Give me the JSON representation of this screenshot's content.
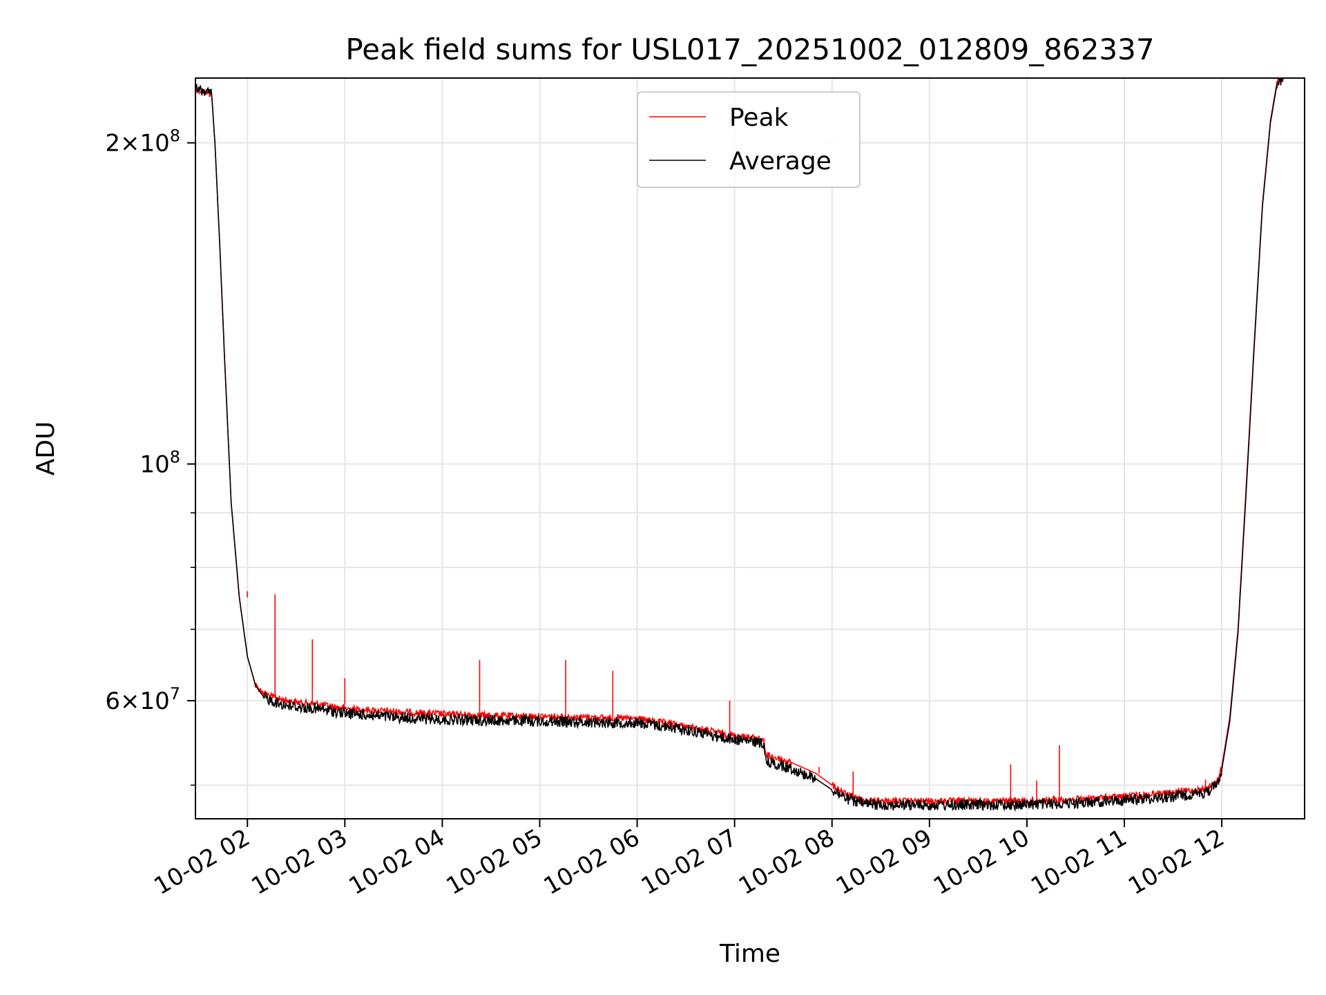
{
  "chart_data": {
    "type": "line",
    "title": "Peak field sums for USL017_20251002_012809_862337",
    "xlabel": "Time",
    "ylabel": "ADU",
    "y_scale": "log",
    "ylim": [
      46500000,
      230000000
    ],
    "xlim": [
      "10-02 01:28",
      "10-02 12:51"
    ],
    "x_ticks": [
      {
        "t": "10-02 02:00",
        "label": "10-02 02"
      },
      {
        "t": "10-02 03:00",
        "label": "10-02 03"
      },
      {
        "t": "10-02 04:00",
        "label": "10-02 04"
      },
      {
        "t": "10-02 05:00",
        "label": "10-02 05"
      },
      {
        "t": "10-02 06:00",
        "label": "10-02 06"
      },
      {
        "t": "10-02 07:00",
        "label": "10-02 07"
      },
      {
        "t": "10-02 08:00",
        "label": "10-02 08"
      },
      {
        "t": "10-02 09:00",
        "label": "10-02 09"
      },
      {
        "t": "10-02 10:00",
        "label": "10-02 10"
      },
      {
        "t": "10-02 11:00",
        "label": "10-02 11"
      },
      {
        "t": "10-02 12:00",
        "label": "10-02 12"
      }
    ],
    "y_major_ticks": [
      {
        "value": 200000000,
        "base": "2×10",
        "exp": "8"
      },
      {
        "value": 100000000,
        "base": "10",
        "exp": "8"
      },
      {
        "value": 60000000,
        "base": "6×10",
        "exp": "7"
      }
    ],
    "y_minor_ticks": [
      50000000,
      70000000,
      80000000,
      90000000
    ],
    "grid": true,
    "legend": {
      "position": "upper center"
    },
    "series": [
      {
        "name": "Peak",
        "color": "#ff0000",
        "x": [
          "10-02 01:28",
          "10-02 01:30",
          "10-02 01:35",
          "10-02 01:38",
          "10-02 01:40",
          "10-02 01:43",
          "10-02 01:46",
          "10-02 01:50",
          "10-02 01:55",
          "10-02 02:00",
          "10-02 02:05",
          "10-02 02:10",
          "10-02 02:15",
          "10-02 02:20",
          "10-02 02:30",
          "10-02 02:45",
          "10-02 03:00",
          "10-02 03:30",
          "10-02 04:00",
          "10-02 04:30",
          "10-02 05:00",
          "10-02 05:30",
          "10-02 06:00",
          "10-02 06:20",
          "10-02 06:40",
          "10-02 06:55",
          "10-02 07:18",
          "10-02 07:19",
          "10-02 07:35",
          "10-02 07:50",
          "10-02 08:00",
          "10-02 08:10",
          "10-02 08:20",
          "10-02 08:40",
          "10-02 09:00",
          "10-02 09:30",
          "10-02 10:00",
          "10-02 10:30",
          "10-02 11:00",
          "10-02 11:30",
          "10-02 11:50",
          "10-02 11:57",
          "10-02 12:00",
          "10-02 12:05",
          "10-02 12:10",
          "10-02 12:15",
          "10-02 12:20",
          "10-02 12:25",
          "10-02 12:30",
          "10-02 12:34",
          "10-02 12:38"
        ],
        "y": [
          225000000,
          224000000,
          223000000,
          222000000,
          200000000,
          160000000,
          125000000,
          92000000,
          75000000,
          66000000,
          62000000,
          61000000,
          60500000,
          60200000,
          59800000,
          59500000,
          59000000,
          58600000,
          58300000,
          58100000,
          58000000,
          57900000,
          57700000,
          57100000,
          56400000,
          55800000,
          55200000,
          53400000,
          52500000,
          51300000,
          50000000,
          48900000,
          48400000,
          48300000,
          48300000,
          48300000,
          48350000,
          48500000,
          48800000,
          49200000,
          49600000,
          50300000,
          52000000,
          58000000,
          70000000,
          95000000,
          130000000,
          175000000,
          210000000,
          228000000,
          230000000
        ],
        "spikes": [
          {
            "x": "10-02 02:00",
            "y": 76000000
          },
          {
            "x": "10-02 02:17",
            "y": 75500000
          },
          {
            "x": "10-02 02:40",
            "y": 68500000
          },
          {
            "x": "10-02 03:00",
            "y": 63000000
          },
          {
            "x": "10-02 04:23",
            "y": 65500000
          },
          {
            "x": "10-02 05:16",
            "y": 65500000
          },
          {
            "x": "10-02 05:45",
            "y": 64000000
          },
          {
            "x": "10-02 06:57",
            "y": 60000000
          },
          {
            "x": "10-02 07:52",
            "y": 52000000
          },
          {
            "x": "10-02 08:13",
            "y": 51500000
          },
          {
            "x": "10-02 09:50",
            "y": 52300000
          },
          {
            "x": "10-02 10:06",
            "y": 50500000
          },
          {
            "x": "10-02 10:20",
            "y": 54500000
          },
          {
            "x": "10-02 11:50",
            "y": 50600000
          }
        ]
      },
      {
        "name": "Average",
        "color": "#000000",
        "x": [
          "10-02 01:28",
          "10-02 01:30",
          "10-02 01:35",
          "10-02 01:38",
          "10-02 01:40",
          "10-02 01:43",
          "10-02 01:46",
          "10-02 01:50",
          "10-02 01:55",
          "10-02 02:00",
          "10-02 02:05",
          "10-02 02:10",
          "10-02 02:15",
          "10-02 02:20",
          "10-02 02:30",
          "10-02 02:45",
          "10-02 03:00",
          "10-02 03:30",
          "10-02 04:00",
          "10-02 04:30",
          "10-02 05:00",
          "10-02 05:30",
          "10-02 06:00",
          "10-02 06:20",
          "10-02 06:40",
          "10-02 06:55",
          "10-02 07:18",
          "10-02 07:19",
          "10-02 07:35",
          "10-02 07:50",
          "10-02 08:00",
          "10-02 08:10",
          "10-02 08:20",
          "10-02 08:40",
          "10-02 09:00",
          "10-02 09:30",
          "10-02 10:00",
          "10-02 10:30",
          "10-02 11:00",
          "10-02 11:30",
          "10-02 11:50",
          "10-02 11:57",
          "10-02 12:00",
          "10-02 12:05",
          "10-02 12:10",
          "10-02 12:15",
          "10-02 12:20",
          "10-02 12:25",
          "10-02 12:30",
          "10-02 12:34",
          "10-02 12:38"
        ],
        "y": [
          225000000,
          224000000,
          223000000,
          222000000,
          200000000,
          160000000,
          125000000,
          92000000,
          75000000,
          66000000,
          62000000,
          60500000,
          60000000,
          59600000,
          59200000,
          58900000,
          58400000,
          57900000,
          57600000,
          57500000,
          57400000,
          57300000,
          57200000,
          56700000,
          56000000,
          55300000,
          54800000,
          52700000,
          51800000,
          50700000,
          49500000,
          48500000,
          48000000,
          47900000,
          47900000,
          47900000,
          47950000,
          48100000,
          48400000,
          48800000,
          49200000,
          50000000,
          51700000,
          57500000,
          69500000,
          94000000,
          129000000,
          174000000,
          209000000,
          227000000,
          230000000
        ]
      }
    ]
  }
}
